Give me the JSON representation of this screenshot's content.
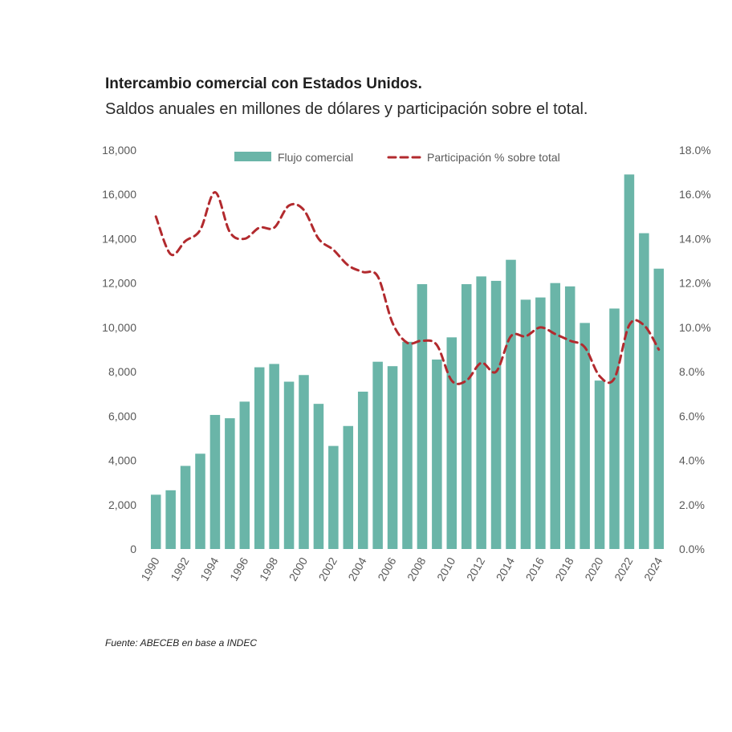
{
  "title": "Intercambio comercial con Estados Unidos.",
  "subtitle": "Saldos anuales en millones de dólares y participación sobre el total.",
  "source": "Fuente: ABECEB en base a INDEC",
  "colors": {
    "bars": "#6ab5a8",
    "line": "#b22a2e",
    "ticks": "#595959"
  },
  "chart_data": {
    "type": "bar",
    "categories": [
      "1990",
      "1991",
      "1992",
      "1993",
      "1994",
      "1995",
      "1996",
      "1997",
      "1998",
      "1999",
      "2000",
      "2001",
      "2002",
      "2003",
      "2004",
      "2005",
      "2006",
      "2007",
      "2008",
      "2009",
      "2010",
      "2011",
      "2012",
      "2013",
      "2014",
      "2015",
      "2016",
      "2017",
      "2018",
      "2019",
      "2020",
      "2021",
      "2022",
      "2023",
      "2024"
    ],
    "x_tick_labels": [
      "1990",
      "1992",
      "1994",
      "1996",
      "1998",
      "2000",
      "2002",
      "2004",
      "2006",
      "2008",
      "2010",
      "2012",
      "2014",
      "2016",
      "2018",
      "2020",
      "2022",
      "2024"
    ],
    "series": [
      {
        "name": "Flujo comercial",
        "type": "bar",
        "axis": "left",
        "values": [
          2450,
          2650,
          3750,
          4300,
          6050,
          5900,
          6650,
          8200,
          8350,
          7550,
          7850,
          6550,
          4650,
          5550,
          7100,
          8450,
          8250,
          9350,
          11950,
          8550,
          9550,
          11950,
          12300,
          12100,
          13050,
          11250,
          11350,
          12000,
          11850,
          10200,
          7600,
          10850,
          16900,
          14250,
          12650
        ]
      },
      {
        "name": "Participación % sobre total",
        "type": "line",
        "style": "dashed",
        "axis": "right",
        "values": [
          15.0,
          13.3,
          13.9,
          14.4,
          16.1,
          14.3,
          14.0,
          14.5,
          14.5,
          15.5,
          15.3,
          14.0,
          13.5,
          12.8,
          12.5,
          12.3,
          10.2,
          9.3,
          9.4,
          9.2,
          7.6,
          7.6,
          8.4,
          8.0,
          9.6,
          9.6,
          10.0,
          9.7,
          9.4,
          9.1,
          7.8,
          7.7,
          10.1,
          10.1,
          9.0
        ]
      }
    ],
    "y_left": {
      "range": [
        0,
        18000
      ],
      "ticks": [
        "0",
        "2,000",
        "4,000",
        "6,000",
        "8,000",
        "10,000",
        "12,000",
        "14,000",
        "16,000",
        "18,000"
      ]
    },
    "y_right": {
      "range": [
        0,
        18
      ],
      "ticks": [
        "0.0%",
        "2.0%",
        "4.0%",
        "6.0%",
        "8.0%",
        "10.0%",
        "12.0%",
        "14.0%",
        "16.0%",
        "18.0%"
      ]
    },
    "legend_position": "top",
    "grid": false
  }
}
